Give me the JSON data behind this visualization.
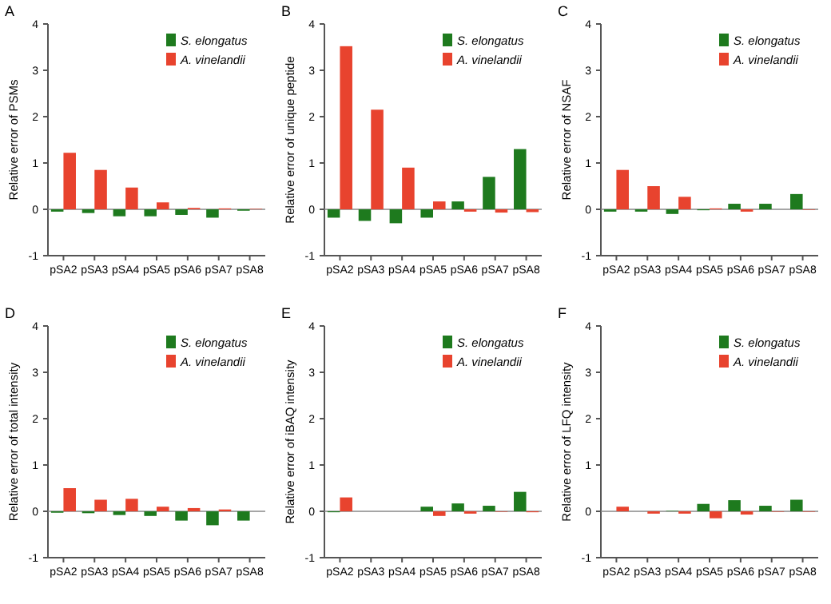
{
  "chart_data": [
    {
      "type": "bar",
      "title": "A",
      "ylabel": "Relative error of PSMs",
      "categories": [
        "pSA2",
        "pSA3",
        "pSA4",
        "pSA5",
        "pSA6",
        "pSA7",
        "pSA8"
      ],
      "ylim": [
        -1,
        4
      ],
      "yticks": [
        -1,
        0,
        1,
        2,
        3,
        4
      ],
      "legend": "top right",
      "ref_lines": [
        {
          "axis": "y",
          "value": 0,
          "color": "#888888"
        }
      ],
      "series": [
        {
          "name": "S. elongatus",
          "color": "#1e7a1e",
          "values": [
            -0.05,
            -0.08,
            -0.15,
            -0.15,
            -0.12,
            -0.18,
            -0.03
          ]
        },
        {
          "name": "A. vinelandii",
          "color": "#e8432e",
          "values": [
            1.22,
            0.85,
            0.47,
            0.15,
            0.03,
            0.02,
            0.01
          ]
        }
      ]
    },
    {
      "type": "bar",
      "title": "B",
      "ylabel": "Relative error of unique peptide",
      "categories": [
        "pSA2",
        "pSA3",
        "pSA4",
        "pSA5",
        "pSA6",
        "pSA7",
        "pSA8"
      ],
      "ylim": [
        -1,
        4
      ],
      "yticks": [
        -1,
        0,
        1,
        2,
        3,
        4
      ],
      "legend": "top right",
      "ref_lines": [
        {
          "axis": "y",
          "value": 0,
          "color": "#888888"
        }
      ],
      "series": [
        {
          "name": "S. elongatus",
          "color": "#1e7a1e",
          "values": [
            -0.18,
            -0.25,
            -0.3,
            -0.18,
            0.17,
            0.7,
            1.3
          ]
        },
        {
          "name": "A. vinelandii",
          "color": "#e8432e",
          "values": [
            3.52,
            2.15,
            0.9,
            0.17,
            -0.05,
            -0.07,
            -0.06
          ]
        }
      ]
    },
    {
      "type": "bar",
      "title": "C",
      "ylabel": "Relative error of NSAF",
      "categories": [
        "pSA2",
        "pSA3",
        "pSA4",
        "pSA5",
        "pSA6",
        "pSA7",
        "pSA8"
      ],
      "ylim": [
        -1,
        4
      ],
      "yticks": [
        -1,
        0,
        1,
        2,
        3,
        4
      ],
      "legend": "top right",
      "ref_lines": [
        {
          "axis": "y",
          "value": 0,
          "color": "#888888"
        }
      ],
      "series": [
        {
          "name": "S. elongatus",
          "color": "#1e7a1e",
          "values": [
            -0.05,
            -0.05,
            -0.1,
            -0.02,
            0.12,
            0.12,
            0.33
          ]
        },
        {
          "name": "A. vinelandii",
          "color": "#e8432e",
          "values": [
            0.85,
            0.5,
            0.27,
            0.02,
            -0.05,
            0.0,
            -0.01
          ]
        }
      ]
    },
    {
      "type": "bar",
      "title": "D",
      "ylabel": "Relative error of total intensity",
      "categories": [
        "pSA2",
        "pSA3",
        "pSA4",
        "pSA5",
        "pSA6",
        "pSA7",
        "pSA8"
      ],
      "ylim": [
        -1,
        4
      ],
      "yticks": [
        -1,
        0,
        1,
        2,
        3,
        4
      ],
      "legend": "top right",
      "ref_lines": [
        {
          "axis": "y",
          "value": 0,
          "color": "#888888"
        }
      ],
      "series": [
        {
          "name": "S. elongatus",
          "color": "#1e7a1e",
          "values": [
            -0.03,
            -0.04,
            -0.08,
            -0.1,
            -0.2,
            -0.3,
            -0.2
          ]
        },
        {
          "name": "A. vinelandii",
          "color": "#e8432e",
          "values": [
            0.5,
            0.25,
            0.27,
            0.1,
            0.07,
            0.04,
            0.0
          ]
        }
      ]
    },
    {
      "type": "bar",
      "title": "E",
      "ylabel": "Relative error of iBAQ intensity",
      "categories": [
        "pSA2",
        "pSA3",
        "pSA4",
        "pSA5",
        "pSA6",
        "pSA7",
        "pSA8"
      ],
      "ylim": [
        -1,
        4
      ],
      "yticks": [
        -1,
        0,
        1,
        2,
        3,
        4
      ],
      "legend": "top right",
      "ref_lines": [
        {
          "axis": "y",
          "value": 0,
          "color": "#888888"
        }
      ],
      "series": [
        {
          "name": "S. elongatus",
          "color": "#1e7a1e",
          "values": [
            -0.02,
            0,
            0,
            0.1,
            0.17,
            0.12,
            0.42
          ]
        },
        {
          "name": "A. vinelandii",
          "color": "#e8432e",
          "values": [
            0.3,
            0,
            0,
            -0.1,
            -0.05,
            -0.01,
            -0.02
          ]
        }
      ]
    },
    {
      "type": "bar",
      "title": "F",
      "ylabel": "Relative error of LFQ intensity",
      "categories": [
        "pSA2",
        "pSA3",
        "pSA4",
        "pSA5",
        "pSA6",
        "pSA7",
        "pSA8"
      ],
      "ylim": [
        -1,
        4
      ],
      "yticks": [
        -1,
        0,
        1,
        2,
        3,
        4
      ],
      "legend": "top right",
      "ref_lines": [
        {
          "axis": "y",
          "value": 0,
          "color": "#888888"
        }
      ],
      "series": [
        {
          "name": "S. elongatus",
          "color": "#1e7a1e",
          "values": [
            0,
            0,
            0.01,
            0.16,
            0.24,
            0.12,
            0.25
          ]
        },
        {
          "name": "A. vinelandii",
          "color": "#e8432e",
          "values": [
            0.1,
            -0.05,
            -0.05,
            -0.15,
            -0.07,
            -0.01,
            -0.01
          ]
        }
      ]
    }
  ]
}
